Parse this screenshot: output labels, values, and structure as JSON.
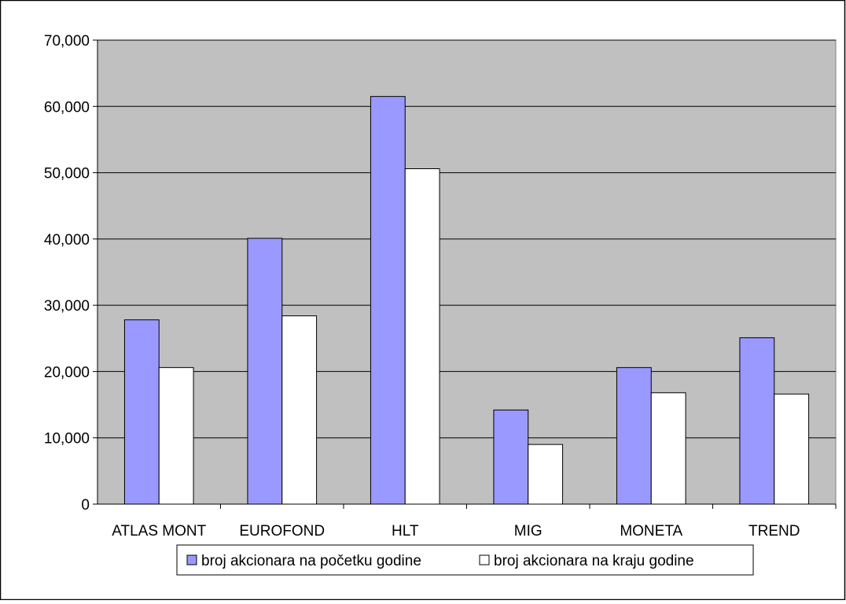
{
  "chart_data": {
    "type": "bar",
    "categories": [
      "ATLAS MONT",
      "EUROFOND",
      "HLT",
      "MIG",
      "MONETA",
      "TREND"
    ],
    "series": [
      {
        "name": "broj akcionara na početku godine",
        "values": [
          27800,
          40100,
          61500,
          14200,
          20600,
          25100
        ],
        "color": "#9999ff"
      },
      {
        "name": "broj akcionara na kraju godine",
        "values": [
          20600,
          28400,
          50600,
          9000,
          16800,
          16600
        ],
        "color": "#ffffff"
      }
    ],
    "ylim": [
      0,
      70000
    ],
    "yticks": [
      "0",
      "10,000",
      "20,000",
      "30,000",
      "40,000",
      "50,000",
      "60,000",
      "70,000"
    ],
    "ytick_values": [
      0,
      10000,
      20000,
      30000,
      40000,
      50000,
      60000,
      70000
    ],
    "grid": true,
    "plot_background": "#c0c0c0",
    "legend_position": "bottom",
    "title": "",
    "xlabel": "",
    "ylabel": ""
  }
}
